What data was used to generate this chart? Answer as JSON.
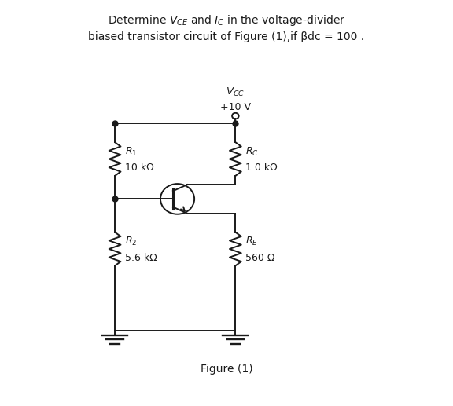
{
  "vcc_label": "$V_{CC}$",
  "vcc_value": "+10 V",
  "r1_label": "$R_1$",
  "r1_value": "10 kΩ",
  "r2_label": "$R_2$",
  "r2_value": "5.6 kΩ",
  "rc_label": "$R_C$",
  "rc_value": "1.0 kΩ",
  "re_label": "$R_E$",
  "re_value": "560 Ω",
  "figure_label": "Figure (1)",
  "title_line1": "Determine $V_{CE}$ and $I_C$ in the voltage-divider",
  "title_line2": "biased transistor circuit of Figure (1),if βdc = 100 .",
  "bg_color": "#ffffff",
  "line_color": "#1a1a1a",
  "text_color": "#1a1a1a",
  "lw": 1.4
}
